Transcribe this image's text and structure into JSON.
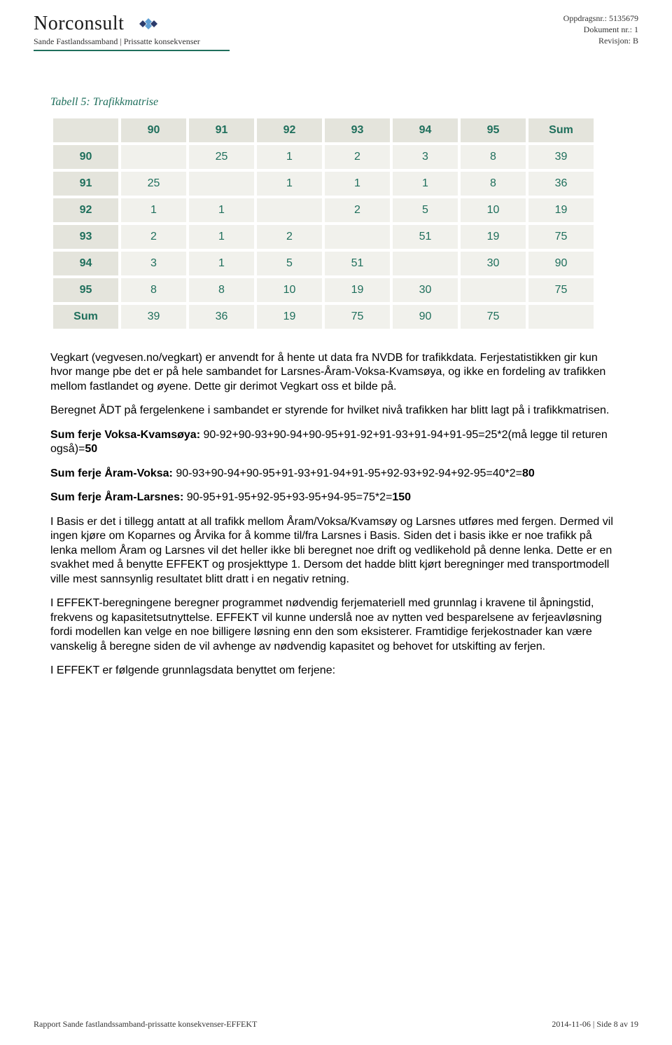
{
  "header": {
    "logo_text": "Norconsult",
    "sub_line": "Sande Fastlandssamband | Prissatte konsekvenser",
    "meta_oppdrag_label": "Oppdragsnr.:",
    "meta_oppdrag_value": "5135679",
    "meta_doc_label": "Dokument nr.:",
    "meta_doc_value": "1",
    "meta_rev_label": "Revisjon:",
    "meta_rev_value": "B",
    "logo_colors": {
      "dark": "#2a3a6b",
      "light": "#5f9fd4"
    }
  },
  "table": {
    "caption": "Tabell 5: Trafikkmatrise",
    "header_bg": "#e4e4dc",
    "cell_bg": "#f1f1ec",
    "text_color": "#1f6f5c",
    "columns": [
      "",
      "90",
      "91",
      "92",
      "93",
      "94",
      "95",
      "Sum"
    ],
    "rows": [
      {
        "head": "90",
        "cells": [
          "",
          "25",
          "1",
          "2",
          "3",
          "8",
          "39"
        ]
      },
      {
        "head": "91",
        "cells": [
          "25",
          "",
          "1",
          "1",
          "1",
          "8",
          "36"
        ]
      },
      {
        "head": "92",
        "cells": [
          "1",
          "1",
          "",
          "2",
          "5",
          "10",
          "19"
        ]
      },
      {
        "head": "93",
        "cells": [
          "2",
          "1",
          "2",
          "",
          "51",
          "19",
          "75"
        ]
      },
      {
        "head": "94",
        "cells": [
          "3",
          "1",
          "5",
          "51",
          "",
          "30",
          "90"
        ]
      },
      {
        "head": "95",
        "cells": [
          "8",
          "8",
          "10",
          "19",
          "30",
          "",
          "75"
        ]
      },
      {
        "head": "Sum",
        "cells": [
          "39",
          "36",
          "19",
          "75",
          "90",
          "75",
          ""
        ]
      }
    ]
  },
  "body": {
    "p1": "Vegkart (vegvesen.no/vegkart) er anvendt for å hente ut data fra NVDB for trafikkdata. Ferjestatistikken gir kun hvor mange pbe det er på hele sambandet for Larsnes-Åram-Voksa-Kvamsøya, og ikke en fordeling av trafikken mellom fastlandet og øyene. Dette gir derimot Vegkart oss et bilde på.",
    "p2": "Beregnet ÅDT på fergelenkene i sambandet er styrende for hvilket nivå trafikken har blitt lagt på i trafikkmatrisen.",
    "p3_bold": "Sum ferje Voksa-Kvamsøya:",
    "p3_rest": " 90-92+90-93+90-94+90-95+91-92+91-93+91-94+91-95=25*2(må legge til returen også)=",
    "p3_end": "50",
    "p4_bold": "Sum ferje Åram-Voksa:",
    "p4_rest": " 90-93+90-94+90-95+91-93+91-94+91-95+92-93+92-94+92-95=40*2=",
    "p4_end": "80",
    "p5_bold": "Sum ferje Åram-Larsnes:",
    "p5_rest": " 90-95+91-95+92-95+93-95+94-95=75*2=",
    "p5_end": "150",
    "p6": "I Basis er det i tillegg antatt at all trafikk mellom Åram/Voksa/Kvamsøy og Larsnes utføres med fergen. Dermed vil ingen kjøre om Koparnes og Årvika for å komme til/fra Larsnes i Basis. Siden det i basis ikke er noe trafikk på lenka mellom Åram og Larsnes vil det heller ikke bli beregnet noe drift og vedlikehold på denne lenka. Dette er en svakhet med å benytte EFFEKT og prosjekttype 1. Dersom det hadde blitt kjørt beregninger med transportmodell ville mest sannsynlig resultatet blitt dratt i en negativ retning.",
    "p7": "I EFFEKT-beregningene beregner programmet nødvendig ferjemateriell med grunnlag i kravene til åpningstid, frekvens og kapasitetsutnyttelse. EFFEKT vil kunne underslå noe av nytten ved besparelsene av ferjeavløsning fordi modellen kan velge en noe billigere løsning enn den som eksisterer. Framtidige ferjekostnader kan være vanskelig å beregne siden de vil avhenge av nødvendig kapasitet og behovet for utskifting av ferjen.",
    "p8": "I EFFEKT er følgende grunnlagsdata benyttet om ferjene:"
  },
  "footer": {
    "left": "Rapport Sande fastlandssamband-prissatte konsekvenser-EFFEKT",
    "right_date": "2014-11-06",
    "right_page": "Side 8 av 19"
  }
}
